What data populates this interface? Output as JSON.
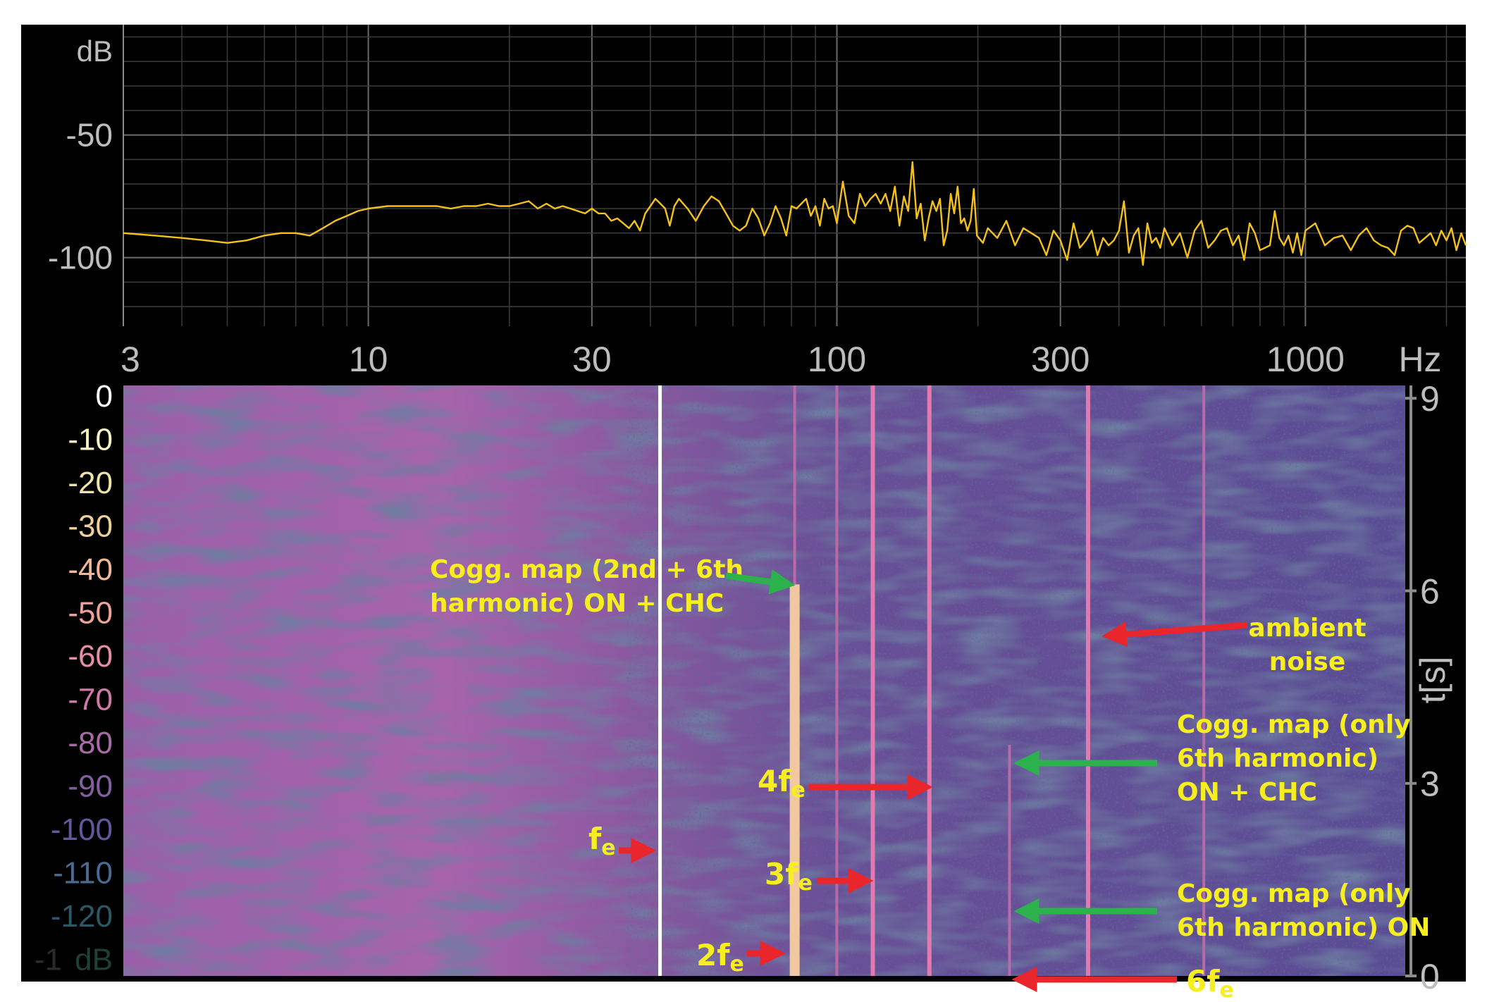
{
  "chart_data": [
    {
      "type": "line",
      "title": "",
      "xlabel": "Hz",
      "ylabel": "dB",
      "x_scale": "log",
      "xlim": [
        3,
        2200
      ],
      "ylim": [
        -128,
        -5
      ],
      "grid": true,
      "x_ticks": [
        3,
        10,
        30,
        100,
        300,
        1000
      ],
      "x_tick_labels": [
        "3",
        "10",
        "30",
        "100",
        "300",
        "1000"
      ],
      "x_unit_label": "Hz",
      "y_ticks": [
        -50,
        -100
      ],
      "y_tick_labels": [
        "-50",
        "-100"
      ],
      "y_unit_label": "dB",
      "line_color": "#f4c21a",
      "series": [
        {
          "x": [
            3,
            3.5,
            4,
            4.5,
            5,
            5.5,
            6,
            6.5,
            7,
            7.5,
            8,
            8.5,
            9,
            9.5,
            10,
            11,
            12,
            13,
            14,
            15,
            16,
            17,
            18,
            19,
            20,
            21,
            22,
            23,
            24,
            25,
            26,
            27,
            28,
            29,
            30,
            31,
            32,
            33,
            34,
            35,
            36,
            37,
            38,
            39,
            40,
            41,
            42,
            43,
            44,
            45,
            46,
            48,
            50,
            52,
            54,
            56,
            58,
            60,
            62,
            64,
            66,
            68,
            70,
            72,
            74,
            76,
            78,
            80,
            82,
            84,
            86,
            88,
            90,
            92,
            94,
            96,
            98,
            100,
            103,
            106,
            109,
            112,
            115,
            118,
            121,
            124,
            127,
            130,
            133,
            136,
            139,
            142,
            145,
            148,
            151,
            154,
            157,
            160,
            163,
            166,
            169,
            172,
            175,
            178,
            181,
            184,
            187,
            190,
            193,
            196,
            199,
            205,
            210,
            220,
            230,
            240,
            250,
            260,
            270,
            280,
            290,
            300,
            310,
            320,
            330,
            340,
            350,
            360,
            370,
            380,
            390,
            400,
            410,
            420,
            430,
            440,
            450,
            460,
            470,
            480,
            490,
            500,
            520,
            540,
            560,
            580,
            600,
            620,
            640,
            660,
            680,
            700,
            720,
            740,
            760,
            780,
            800,
            820,
            840,
            860,
            880,
            900,
            920,
            940,
            960,
            980,
            1000,
            1050,
            1100,
            1150,
            1200,
            1250,
            1300,
            1350,
            1400,
            1450,
            1500,
            1550,
            1600,
            1650,
            1700,
            1750,
            1800,
            1850,
            1900,
            1950,
            2000,
            2050,
            2100,
            2150,
            2200
          ],
          "y": [
            -90,
            -91,
            -92,
            -93,
            -94,
            -93,
            -91,
            -90,
            -90,
            -91,
            -88,
            -85,
            -83,
            -81,
            -80,
            -79,
            -79,
            -79,
            -79,
            -80,
            -79,
            -79,
            -78,
            -79,
            -79,
            -78,
            -77,
            -80,
            -78,
            -80,
            -79,
            -80,
            -81,
            -82,
            -80,
            -82,
            -82,
            -85,
            -84,
            -86,
            -88,
            -85,
            -89,
            -82,
            -79,
            -76,
            -78,
            -80,
            -87,
            -79,
            -76,
            -80,
            -85,
            -79,
            -75,
            -77,
            -82,
            -87,
            -89,
            -87,
            -80,
            -84,
            -91,
            -86,
            -79,
            -84,
            -91,
            -79,
            -80,
            -78,
            -76,
            -83,
            -79,
            -87,
            -76,
            -80,
            -79,
            -86,
            -69,
            -83,
            -86,
            -74,
            -79,
            -76,
            -74,
            -78,
            -74,
            -81,
            -71,
            -87,
            -75,
            -81,
            -61,
            -84,
            -78,
            -93,
            -84,
            -77,
            -81,
            -76,
            -95,
            -89,
            -74,
            -82,
            -71,
            -86,
            -84,
            -89,
            -85,
            -72,
            -91,
            -94,
            -88,
            -92,
            -85,
            -95,
            -88,
            -90,
            -92,
            -99,
            -89,
            -93,
            -101,
            -86,
            -96,
            -93,
            -89,
            -99,
            -92,
            -95,
            -93,
            -89,
            -77,
            -98,
            -91,
            -88,
            -103,
            -86,
            -94,
            -92,
            -96,
            -88,
            -95,
            -90,
            -100,
            -89,
            -85,
            -96,
            -93,
            -89,
            -88,
            -95,
            -91,
            -101,
            -86,
            -90,
            -97,
            -96,
            -95,
            -81,
            -92,
            -95,
            -91,
            -98,
            -90,
            -99,
            -89,
            -86,
            -95,
            -92,
            -91,
            -97,
            -91,
            -88,
            -93,
            -95,
            -96,
            -99,
            -89,
            -87,
            -88,
            -94,
            -92,
            -90,
            -95,
            -89,
            -93,
            -88,
            -97,
            -90,
            -95
          ]
        }
      ]
    },
    {
      "type": "heatmap",
      "title": "",
      "xlabel": "Hz",
      "ylabel": "t[s]",
      "x_scale": "log",
      "xlim": [
        3,
        2200
      ],
      "ylim": [
        0,
        9.2
      ],
      "time_ticks": [
        0,
        3,
        6,
        9
      ],
      "time_tick_labels": [
        "0",
        "3",
        "6",
        "9"
      ],
      "time_axis_label": "t[s]",
      "color_scale_labels": [
        "0",
        "-10",
        "-20",
        "-30",
        "-40",
        "-50",
        "-60",
        "-70",
        "-80",
        "-90",
        "-100",
        "-110",
        "-120",
        "dB"
      ],
      "color_scale_stub": "-1",
      "color_scale_colors": [
        "#ffffff",
        "#f7f2c6",
        "#eee4a8",
        "#efcf9b",
        "#f1b997",
        "#efa29b",
        "#e88ea4",
        "#d07aa8",
        "#a86ba7",
        "#8260a0",
        "#62589a",
        "#4a6a91",
        "#2c5865",
        "#1f4036",
        "#3a3a3a"
      ],
      "marker_line_hz": 47.5,
      "vertical_lines": [
        {
          "hz": 95,
          "from_s": 0,
          "to_s": 6.1,
          "strength": "strong"
        },
        {
          "hz": 95,
          "from_s": 6.1,
          "to_s": 9.2,
          "strength": "weak"
        },
        {
          "hz": 118,
          "from_s": 0,
          "to_s": 9.2,
          "strength": "weak"
        },
        {
          "hz": 142,
          "from_s": 0,
          "to_s": 9.2,
          "strength": "medium"
        },
        {
          "hz": 190,
          "from_s": 0,
          "to_s": 9.2,
          "strength": "medium"
        },
        {
          "hz": 287,
          "from_s": 0,
          "to_s": 3.6,
          "strength": "weak"
        },
        {
          "hz": 430,
          "from_s": 0,
          "to_s": 9.2,
          "strength": "medium"
        },
        {
          "hz": 780,
          "from_s": 0,
          "to_s": 9.2,
          "strength": "weak"
        }
      ],
      "annotations": [
        {
          "lines": [
            "Cogg. map (2nd + 6th",
            "harmonic) ON + CHC"
          ],
          "arrow": "green",
          "target_hz": 95,
          "target_s": 6.1
        },
        {
          "lines": [
            "ambient",
            "noise"
          ],
          "arrow": "red",
          "target_hz": 430,
          "target_s": 5.3
        },
        {
          "lines": [
            "Cogg. map (only",
            "6th harmonic)",
            "ON + CHC"
          ],
          "arrow": "green",
          "target_hz": 287,
          "target_s": 3.6
        },
        {
          "lines": [
            "Cogg. map (only",
            "6th harmonic) ON"
          ],
          "arrow": "green",
          "target_hz": 287,
          "target_s": 1.2
        },
        {
          "main": "f",
          "sub": "e",
          "arrow": "red",
          "target_hz": 47.5,
          "target_s": 2.2
        },
        {
          "main": "2f",
          "sub": "e",
          "arrow": "red",
          "target_hz": 95,
          "target_s": 0.7
        },
        {
          "main": "3f",
          "sub": "e",
          "arrow": "red",
          "target_hz": 142,
          "target_s": 1.65
        },
        {
          "main": "4f",
          "sub": "e",
          "arrow": "red",
          "target_hz": 190,
          "target_s": 3.1
        },
        {
          "main": "6f",
          "sub": "e",
          "arrow": "red",
          "target_hz": 287,
          "target_s": 0.15
        }
      ]
    }
  ]
}
